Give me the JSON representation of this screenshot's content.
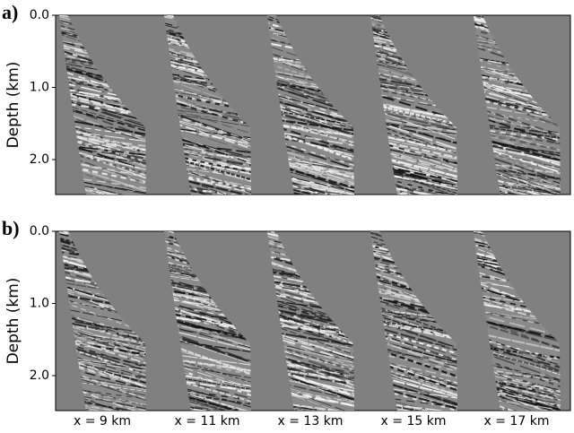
{
  "panels": [
    {
      "label": "a)",
      "y_label": "Depth (km)",
      "y_ticks": [
        "0.0",
        "1.0",
        "2.0"
      ]
    },
    {
      "label": "b)",
      "y_label": "Depth (km)",
      "y_ticks": [
        "0.0",
        "1.0",
        "2.0"
      ]
    }
  ],
  "x_labels": [
    "x = 9 km",
    "x = 11 km",
    "x = 13 km",
    "x = 15 km",
    "x = 17 km"
  ]
}
